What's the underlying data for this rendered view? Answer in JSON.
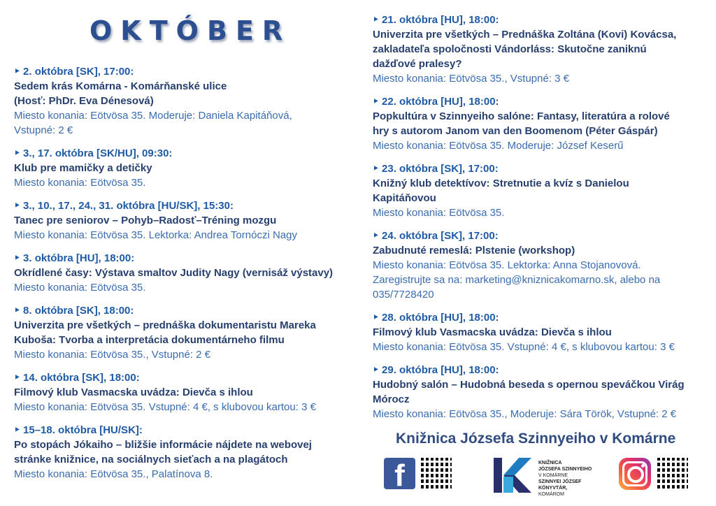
{
  "title": "OKTÓBER",
  "colors": {
    "date": "#1f5aa6",
    "name": "#28406e",
    "info": "#3a6cae",
    "title": "#2b4f91"
  },
  "left_events": [
    {
      "date": "‣ 2. októbra [SK], 17:00:",
      "name": [
        "Sedem krás Komárna - Komárňanské ulice",
        "(Hosť: PhDr. Eva Dénesová)"
      ],
      "info": [
        "Miesto konania: Eötvösa 35. Moderuje: Daniela Kapitáňová,",
        "Vstupné: 2 €"
      ]
    },
    {
      "date": "‣ 3., 17. októbra [SK/HU], 09:30:",
      "name": [
        "Klub pre mamičky a detičky"
      ],
      "info": [
        "Miesto konania: Eötvösa 35."
      ]
    },
    {
      "date": "‣ 3., 10., 17., 24., 31. októbra [HU/SK], 15:30:",
      "name": [
        "Tanec pre seniorov – Pohyb–Radosť–Tréning mozgu"
      ],
      "info": [
        "Miesto konania: Eötvösa 35. Lektorka: Andrea Tornóczi Nagy"
      ]
    },
    {
      "date": "‣ 3. októbra [HU], 18:00:",
      "name": [
        "Okrídlené časy: Výstava smaltov Judity Nagy (vernisáž výstavy)"
      ],
      "info": [
        "Miesto konania: Eötvösa 35."
      ]
    },
    {
      "date": "‣ 8. októbra [SK], 18:00:",
      "name": [
        "Univerzita pre všetkých – prednáška dokumentaristu Mareka",
        "Kuboša: Tvorba a interpretácia dokumentárneho filmu"
      ],
      "info": [
        "Miesto konania: Eötvösa 35., Vstupné: 2 €"
      ]
    },
    {
      "date": "‣ 14. októbra [SK], 18:00:",
      "name": [
        "Filmový klub Vasmacska uvádza: Dievča s ihlou"
      ],
      "info": [
        "Miesto konania: Eötvösa 35. Vstupné: 4 €, s klubovou kartou: 3 €"
      ]
    },
    {
      "date": "‣ 15–18. októbra [HU/SK]:",
      "name": [
        "Po stopách Jókaiho – bližšie informácie nájdete na webovej",
        "stránke knižnice, na sociálnych sieťach a na plagátoch"
      ],
      "info": [
        "Miesto konania: Eötvösa 35., Palatínova 8."
      ]
    }
  ],
  "right_events": [
    {
      "date": "‣ 21. októbra [HU], 18:00:",
      "name": [
        "Univerzita pre všetkých – Prednáška Zoltána (Kovi) Kovácsa,",
        "zakladateľa spoločnosti Vándorláss: Skutočne zaniknú",
        "dažďové pralesy?"
      ],
      "info": [
        "Miesto konania: Eötvösa 35., Vstupné: 3 €"
      ]
    },
    {
      "date": "‣ 22. októbra [HU], 18:00:",
      "name": [
        "Popkultúra v Szinnyeiho salóne: Fantasy, literatúra a rolové",
        "hry s autorom Janom van den Boomenom (Péter Gáspár)"
      ],
      "info": [
        "Miesto konania: Eötvösa 35. Moderuje: József Keserű"
      ]
    },
    {
      "date": "‣ 23. októbra [SK], 17:00:",
      "name": [
        "Knižný klub detektívov: Stretnutie a kvíz s Danielou",
        "Kapitáňovou"
      ],
      "info": [
        "Miesto konania: Eötvösa 35."
      ]
    },
    {
      "date": "‣ 24. októbra [SK], 17:00:",
      "name": [
        "Zabudnuté remeslá: Plstenie (workshop)"
      ],
      "info": [
        "Miesto konania: Eötvösa 35. Lektorka: Anna Stojanovová.",
        "Zaregistrujte sa na: marketing@kniznicakomarno.sk, alebo na",
        "035/7728420"
      ]
    },
    {
      "date": "‣ 28. októbra [HU], 18:00:",
      "name": [
        "Filmový klub Vasmacska uvádza: Dievča s ihlou"
      ],
      "info": [
        "Miesto konania: Eötvösa 35. Vstupné: 4 €, s klubovou kartou: 3 €"
      ]
    },
    {
      "date": "‣ 29. októbra [HU], 18:00:",
      "name": [
        "Hudobný salón – Hudobná beseda s opernou speváčkou Virág",
        "Mórocz"
      ],
      "info": [
        "Miesto konania: Eötvösa 35., Moderuje: Sára Török, Vstupné: 2 €"
      ]
    }
  ],
  "footer": {
    "library_name": "Knižnica Józsefa Szinnyeiho v Komárne",
    "logo_text": [
      "KNIŽNICA",
      "JÓZSEFA SZINNYEIHO",
      "V KOMÁRNE",
      "SZINNYEI JÓZSEF",
      "KÖNYVTÁR,",
      "KOMÁROM"
    ],
    "icons": [
      "facebook-icon",
      "qr-code-icon",
      "library-logo-icon",
      "instagram-icon",
      "qr-code-icon"
    ]
  }
}
